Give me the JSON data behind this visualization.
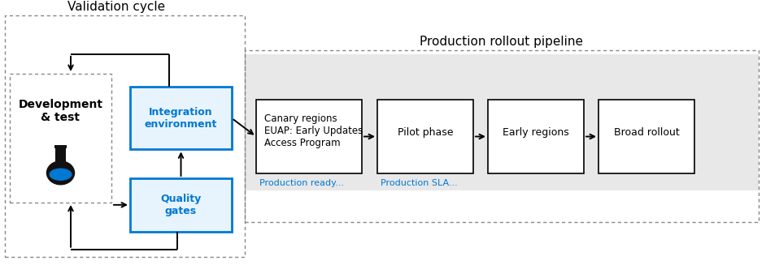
{
  "title_validation": "Validation cycle",
  "title_production": "Production rollout pipeline",
  "dev_test_label": "Development\n& test",
  "integration_label": "Integration\nenvironment",
  "quality_gates_label": "Quality\ngates",
  "canary_label": "Canary regions\nEUAP: Early Updates\nAccess Program",
  "pilot_label": "Pilot phase",
  "early_label": "Early regions",
  "broad_label": "Broad rollout",
  "production_ready": "Production ready...",
  "production_sla": "Production SLA...",
  "blue_color": "#0078d4",
  "blue_light": "#e8f4fd",
  "gray_bg": "#e8e8e8",
  "text_color": "#000000",
  "dotted_color": "#888888",
  "label_fontsize": 9,
  "title_fontsize": 11,
  "fig_w": 9.42,
  "fig_h": 3.27
}
